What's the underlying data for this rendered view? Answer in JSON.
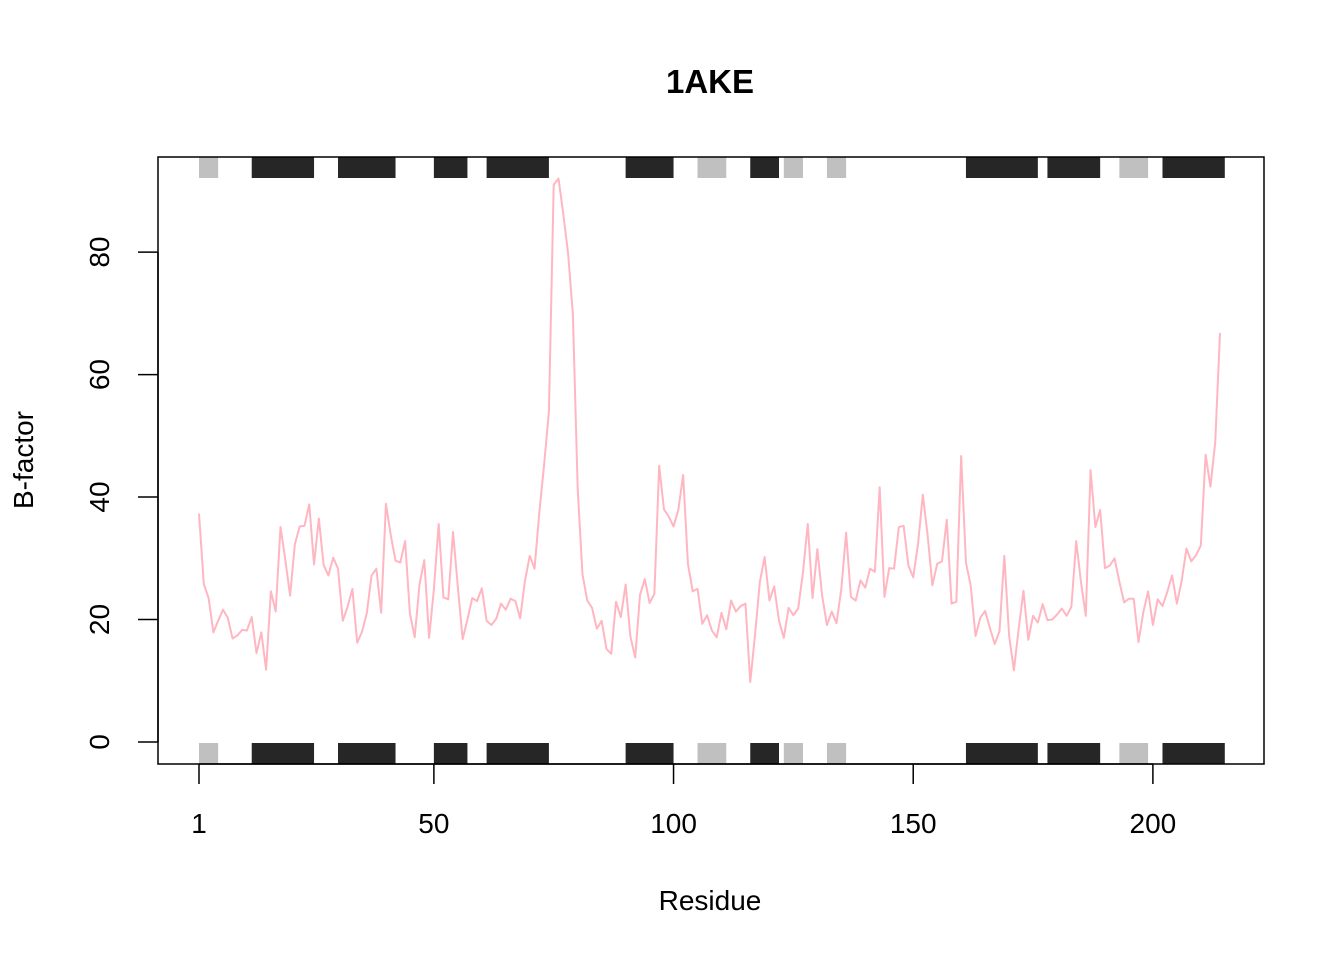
{
  "chart_data": {
    "type": "line",
    "title": "1AKE",
    "xlabel": "Residue",
    "ylabel": "B-factor",
    "xlim": [
      1,
      214
    ],
    "ylim": [
      0,
      92
    ],
    "x_ticks": [
      {
        "value": 1,
        "label": "1"
      },
      {
        "value": 50,
        "label": "50"
      },
      {
        "value": 100,
        "label": "100"
      },
      {
        "value": 150,
        "label": "150"
      },
      {
        "value": 200,
        "label": "200"
      }
    ],
    "y_ticks": [
      {
        "value": 0,
        "label": "0"
      },
      {
        "value": 20,
        "label": "20"
      },
      {
        "value": 40,
        "label": "40"
      },
      {
        "value": 60,
        "label": "60"
      },
      {
        "value": 80,
        "label": "80"
      }
    ],
    "grid": false,
    "series": [
      {
        "color": "#ffb6c1",
        "values": [
          37.3,
          25.8,
          23.5,
          17.9,
          19.8,
          21.6,
          20.3,
          16.9,
          17.4,
          18.3,
          18.2,
          20.4,
          14.5,
          17.9,
          11.8,
          24.6,
          21.3,
          35.1,
          29.8,
          23.9,
          32.3,
          35.2,
          35.3,
          38.8,
          29.0,
          36.5,
          28.9,
          27.2,
          30.1,
          28.3,
          19.8,
          22.1,
          25.0,
          16.2,
          18.0,
          21.0,
          27.2,
          28.3,
          21.1,
          38.9,
          33.8,
          29.6,
          29.3,
          32.8,
          21.0,
          17.1,
          25.7,
          29.7,
          17.0,
          24.9,
          35.6,
          23.6,
          23.3,
          34.3,
          25.3,
          16.8,
          20.0,
          23.5,
          23.0,
          25.1,
          19.8,
          19.1,
          20.1,
          22.6,
          21.6,
          23.4,
          23.0,
          20.2,
          26.3,
          30.4,
          28.3,
          37.5,
          45.3,
          54.0,
          91.0,
          92.0,
          86.2,
          79.8,
          69.8,
          41.4,
          27.4,
          23.1,
          21.9,
          18.5,
          19.8,
          15.2,
          14.4,
          22.9,
          20.4,
          25.7,
          17.2,
          13.8,
          24.0,
          26.6,
          22.7,
          24.2,
          45.1,
          38.0,
          36.8,
          35.2,
          37.9,
          43.6,
          29.1,
          24.6,
          25.0,
          19.3,
          20.7,
          18.2,
          17.1,
          21.1,
          18.4,
          23.1,
          21.3,
          22.2,
          22.6,
          9.8,
          17.5,
          26.1,
          30.2,
          23.1,
          25.4,
          19.8,
          17.0,
          21.9,
          20.7,
          21.8,
          27.7,
          35.6,
          23.5,
          31.5,
          23.9,
          19.1,
          21.3,
          19.4,
          25.0,
          34.2,
          23.7,
          23.1,
          26.4,
          25.2,
          28.3,
          27.8,
          41.6,
          23.7,
          28.4,
          28.3,
          35.1,
          35.3,
          28.8,
          26.9,
          32.3,
          40.4,
          33.8,
          25.6,
          29.1,
          29.5,
          36.3,
          22.6,
          22.9,
          46.7,
          29.3,
          25.5,
          17.3,
          20.3,
          21.4,
          18.6,
          16.0,
          18.1,
          30.4,
          17.4,
          11.7,
          18.5,
          24.7,
          16.7,
          20.6,
          19.5,
          22.5,
          19.9,
          20.0,
          20.8,
          21.8,
          20.6,
          22.1,
          32.8,
          26.1,
          20.6,
          44.4,
          35.1,
          37.9,
          28.4,
          28.8,
          30.0,
          26.2,
          22.8,
          23.4,
          23.4,
          16.3,
          21.2,
          24.6,
          19.1,
          23.3,
          22.2,
          24.5,
          27.2,
          22.6,
          26.3,
          31.6,
          29.5,
          30.5,
          32.1,
          46.9,
          41.7,
          48.9,
          66.8
        ]
      }
    ],
    "sse_segments": [
      {
        "start": 1,
        "end": 5,
        "type": "strand",
        "color": "#c0c0c0"
      },
      {
        "start": 12,
        "end": 25,
        "type": "helix",
        "color": "#262626"
      },
      {
        "start": 30,
        "end": 42,
        "type": "helix",
        "color": "#262626"
      },
      {
        "start": 50,
        "end": 57,
        "type": "helix",
        "color": "#262626"
      },
      {
        "start": 61,
        "end": 74,
        "type": "helix",
        "color": "#262626"
      },
      {
        "start": 90,
        "end": 100,
        "type": "helix",
        "color": "#262626"
      },
      {
        "start": 105,
        "end": 111,
        "type": "strand",
        "color": "#c0c0c0"
      },
      {
        "start": 116,
        "end": 122,
        "type": "helix",
        "color": "#262626"
      },
      {
        "start": 123,
        "end": 127,
        "type": "strand",
        "color": "#c0c0c0"
      },
      {
        "start": 132,
        "end": 136,
        "type": "strand",
        "color": "#c0c0c0"
      },
      {
        "start": 161,
        "end": 176,
        "type": "helix",
        "color": "#262626"
      },
      {
        "start": 178,
        "end": 189,
        "type": "helix",
        "color": "#262626"
      },
      {
        "start": 193,
        "end": 199,
        "type": "strand",
        "color": "#c0c0c0"
      },
      {
        "start": 202,
        "end": 215,
        "type": "helix",
        "color": "#262626"
      }
    ]
  }
}
